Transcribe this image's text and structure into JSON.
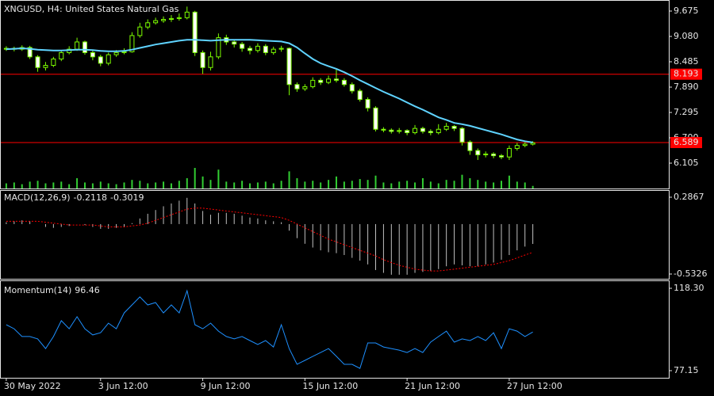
{
  "chart_data": [
    {
      "type": "candlestick",
      "title": "XNGUSD, H4:  United States Natural Gas",
      "open": [
        8.78,
        8.8,
        8.78,
        8.82,
        8.6,
        8.35,
        8.4,
        8.55,
        8.7,
        8.78,
        8.95,
        8.7,
        8.6,
        8.45,
        8.65,
        8.7,
        8.72,
        9.1,
        9.3,
        9.4,
        9.45,
        9.48,
        9.5,
        9.52,
        9.65,
        8.7,
        8.35,
        8.6,
        9.05,
        8.95,
        8.9,
        8.8,
        8.75,
        8.85,
        8.7,
        8.78,
        8.8,
        7.95,
        7.85,
        7.9,
        8.05,
        8.0,
        8.08,
        8.05,
        7.95,
        7.8,
        7.6,
        7.4,
        6.9,
        6.88,
        6.85,
        6.87,
        6.82,
        6.92,
        6.85,
        6.82,
        6.9,
        6.97,
        6.92,
        6.6,
        6.4,
        6.3,
        6.32,
        6.28,
        6.25,
        6.45,
        6.52,
        6.55
      ],
      "high": [
        8.85,
        8.84,
        8.87,
        8.86,
        8.64,
        8.48,
        8.6,
        8.76,
        8.85,
        9.05,
        8.98,
        8.75,
        8.65,
        8.7,
        8.76,
        8.8,
        9.18,
        9.4,
        9.48,
        9.52,
        9.55,
        9.58,
        9.62,
        9.78,
        9.68,
        8.75,
        8.72,
        9.15,
        9.12,
        9.0,
        8.95,
        8.86,
        8.92,
        8.9,
        8.84,
        8.86,
        8.82,
        8.0,
        7.96,
        8.12,
        8.1,
        8.16,
        8.3,
        8.1,
        8.0,
        7.85,
        7.65,
        7.44,
        6.95,
        6.92,
        6.93,
        6.9,
        7.0,
        6.96,
        6.9,
        7.02,
        7.05,
        7.0,
        6.95,
        6.64,
        6.45,
        6.38,
        6.36,
        6.32,
        6.52,
        6.58,
        6.6,
        6.62
      ],
      "low": [
        8.74,
        8.73,
        8.74,
        8.55,
        8.25,
        8.28,
        8.36,
        8.5,
        8.66,
        8.74,
        8.65,
        8.52,
        8.38,
        8.4,
        8.6,
        8.66,
        8.7,
        9.05,
        9.25,
        9.36,
        9.4,
        9.42,
        9.45,
        9.48,
        8.62,
        8.2,
        8.28,
        8.55,
        8.88,
        8.82,
        8.72,
        8.66,
        8.7,
        8.64,
        8.65,
        8.72,
        7.7,
        7.78,
        7.8,
        7.86,
        7.94,
        7.96,
        8.0,
        7.9,
        7.74,
        7.55,
        7.32,
        6.85,
        6.83,
        6.8,
        6.8,
        6.76,
        6.78,
        6.8,
        6.76,
        6.78,
        6.86,
        6.86,
        6.52,
        6.3,
        6.18,
        6.24,
        6.22,
        6.2,
        6.18,
        6.4,
        6.48,
        6.52
      ],
      "close": [
        8.8,
        8.78,
        8.82,
        8.6,
        8.35,
        8.4,
        8.55,
        8.7,
        8.78,
        8.95,
        8.7,
        8.6,
        8.45,
        8.65,
        8.7,
        8.72,
        9.1,
        9.3,
        9.4,
        9.45,
        9.48,
        9.5,
        9.52,
        9.65,
        8.7,
        8.35,
        8.6,
        9.05,
        8.95,
        8.9,
        8.8,
        8.75,
        8.85,
        8.7,
        8.78,
        8.8,
        7.95,
        7.85,
        7.9,
        8.05,
        8.0,
        8.08,
        8.05,
        7.95,
        7.8,
        7.6,
        7.4,
        6.9,
        6.88,
        6.85,
        6.87,
        6.82,
        6.92,
        6.85,
        6.82,
        6.9,
        6.97,
        6.92,
        6.6,
        6.4,
        6.3,
        6.32,
        6.28,
        6.25,
        6.45,
        6.52,
        6.55,
        6.58
      ],
      "ma": [
        8.78,
        8.79,
        8.8,
        8.79,
        8.77,
        8.76,
        8.75,
        8.75,
        8.76,
        8.77,
        8.77,
        8.76,
        8.74,
        8.73,
        8.73,
        8.74,
        8.77,
        8.81,
        8.85,
        8.89,
        8.92,
        8.95,
        8.98,
        9.0,
        9.0,
        8.99,
        8.98,
        8.99,
        9.0,
        9.0,
        9.0,
        9.0,
        8.99,
        8.98,
        8.97,
        8.96,
        8.92,
        8.82,
        8.68,
        8.55,
        8.45,
        8.38,
        8.32,
        8.24,
        8.15,
        8.05,
        7.96,
        7.87,
        7.78,
        7.7,
        7.62,
        7.53,
        7.44,
        7.36,
        7.27,
        7.18,
        7.12,
        7.05,
        7.02,
        6.98,
        6.93,
        6.88,
        6.83,
        6.78,
        6.72,
        6.66,
        6.62,
        6.59
      ],
      "volume": [
        6,
        7,
        5,
        8,
        9,
        6,
        7,
        8,
        5,
        12,
        7,
        6,
        8,
        6,
        5,
        7,
        10,
        9,
        6,
        7,
        8,
        6,
        9,
        12,
        24,
        14,
        10,
        22,
        8,
        7,
        9,
        6,
        7,
        8,
        6,
        9,
        20,
        12,
        8,
        9,
        7,
        10,
        14,
        8,
        9,
        11,
        10,
        15,
        7,
        6,
        8,
        9,
        7,
        12,
        8,
        6,
        10,
        9,
        16,
        12,
        10,
        8,
        7,
        9,
        15,
        8,
        7,
        3
      ],
      "candle_color": "#7cfc00",
      "bull_fill": "#000000",
      "bear_fill": "#ffffff",
      "ma_color": "#5fd3ff",
      "volume_color": "#32cd32",
      "levels": [
        8.193,
        6.589
      ],
      "level_color": "#ff0000",
      "ylim": [
        5.51,
        9.935
      ],
      "yticks": [
        9.675,
        {
          "value": 9.08,
          "label": "9.080"
        },
        8.485,
        {
          "value": 7.89,
          "label": "7.890"
        },
        7.295,
        {
          "value": 6.7,
          "label": "6.700"
        },
        6.105
      ]
    },
    {
      "type": "macd",
      "title": "MACD(12,26,9)",
      "values": [
        0.02,
        0.03,
        0.04,
        0.03,
        0.0,
        -0.03,
        -0.04,
        -0.03,
        -0.02,
        0.0,
        -0.01,
        -0.03,
        -0.05,
        -0.05,
        -0.04,
        -0.03,
        0.01,
        0.06,
        0.11,
        0.15,
        0.19,
        0.22,
        0.25,
        0.28,
        0.22,
        0.14,
        0.1,
        0.12,
        0.12,
        0.11,
        0.09,
        0.07,
        0.06,
        0.04,
        0.03,
        0.02,
        -0.07,
        -0.15,
        -0.21,
        -0.25,
        -0.28,
        -0.3,
        -0.31,
        -0.33,
        -0.36,
        -0.39,
        -0.43,
        -0.49,
        -0.52,
        -0.54,
        -0.54,
        -0.54,
        -0.52,
        -0.51,
        -0.5,
        -0.48,
        -0.45,
        -0.43,
        -0.44,
        -0.45,
        -0.45,
        -0.43,
        -0.41,
        -0.38,
        -0.33,
        -0.28,
        -0.24,
        -0.2118
      ],
      "signal": [
        0.03,
        0.03,
        0.03,
        0.03,
        0.03,
        0.02,
        0.01,
        0.0,
        -0.01,
        -0.01,
        -0.01,
        -0.01,
        -0.02,
        -0.03,
        -0.03,
        -0.03,
        -0.02,
        -0.01,
        0.01,
        0.04,
        0.07,
        0.1,
        0.13,
        0.16,
        0.17,
        0.17,
        0.16,
        0.15,
        0.14,
        0.13,
        0.12,
        0.11,
        0.1,
        0.09,
        0.08,
        0.07,
        0.04,
        0.0,
        -0.04,
        -0.08,
        -0.12,
        -0.16,
        -0.19,
        -0.22,
        -0.25,
        -0.28,
        -0.31,
        -0.34,
        -0.38,
        -0.41,
        -0.44,
        -0.46,
        -0.48,
        -0.49,
        -0.5,
        -0.5,
        -0.49,
        -0.48,
        -0.47,
        -0.46,
        -0.45,
        -0.44,
        -0.43,
        -0.41,
        -0.39,
        -0.36,
        -0.33,
        -0.3019
      ],
      "color": "#c0c0c0",
      "signal_color": "#ff0000",
      "ylim": [
        -0.5833,
        0.3627
      ],
      "yticks": [
        0.2867,
        -0.5326
      ]
    },
    {
      "type": "line",
      "title": "Momentum(14)",
      "values": [
        100.1,
        98.1,
        94.2,
        94.2,
        93.0,
        88.2,
        94.2,
        102.1,
        98.1,
        104.1,
        98.1,
        95.0,
        96.1,
        100.9,
        98.1,
        106.0,
        110.0,
        114.0,
        110.0,
        111.2,
        106.0,
        110.0,
        106.0,
        117.1,
        100.1,
        98.1,
        100.9,
        96.9,
        94.2,
        93.0,
        94.2,
        92.2,
        90.2,
        92.2,
        89.0,
        100.1,
        88.2,
        80.3,
        82.3,
        84.3,
        86.2,
        88.2,
        84.3,
        80.3,
        80.3,
        78.3,
        91.0,
        91.0,
        89.0,
        88.2,
        87.4,
        86.2,
        88.2,
        86.2,
        91.4,
        94.2,
        96.9,
        91.4,
        93.0,
        92.2,
        94.2,
        92.2,
        96.1,
        88.2,
        98.1,
        96.9,
        94.2,
        96.46
      ],
      "color": "#1e90ff",
      "ylim": [
        73.59,
        122.26
      ],
      "yticks": [
        {
          "value": 118.3,
          "label": "118.30"
        },
        77.15
      ],
      "xlim": [
        -0.8,
        84.3
      ],
      "xticks": [
        {
          "value": 0,
          "label": "30 May 2022"
        },
        {
          "value": 12,
          "label": "3 Jun 12:00"
        },
        {
          "value": 25,
          "label": "9 Jun 12:00"
        },
        {
          "value": 38,
          "label": "15 Jun 12:00"
        },
        {
          "value": 51,
          "label": "21 Jun 12:00"
        },
        {
          "value": 64,
          "label": "27 Jun 12:00"
        }
      ]
    }
  ]
}
